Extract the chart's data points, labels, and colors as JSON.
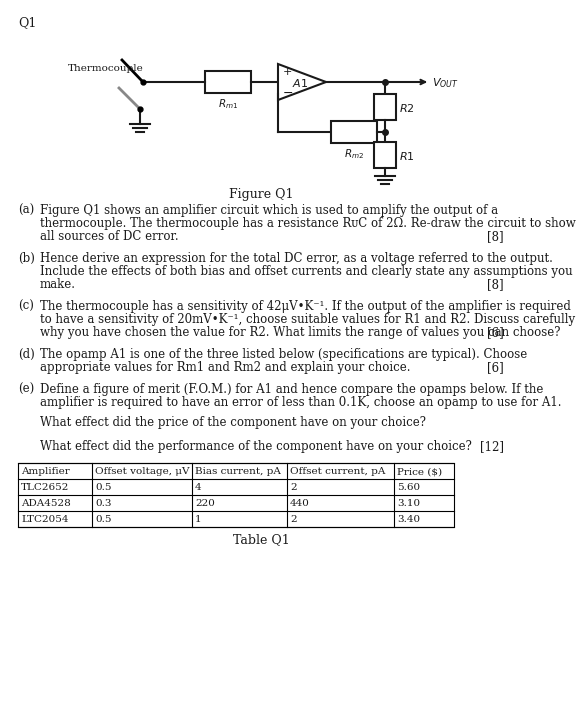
{
  "bg_color": "#ffffff",
  "text_color": "#1a1a1a",
  "line_color": "#1a1a1a",
  "q1_label": "Q1",
  "figure_label": "Figure Q1",
  "table_label": "Table Q1",
  "table_headers": [
    "Amplifier",
    "Offset voltage, μV",
    "Bias current, pA",
    "Offset current, pA",
    "Price ($)"
  ],
  "table_rows": [
    [
      "TLC2652",
      "0.5",
      "4",
      "2",
      "5.60"
    ],
    [
      "ADA4528",
      "0.3",
      "220",
      "440",
      "3.10"
    ],
    [
      "LTC2054",
      "0.5",
      "1",
      "2",
      "3.40"
    ]
  ],
  "qa_label": "(a)",
  "qa_line1": "Figure Q1 shows an amplifier circuit which is used to amplify the output of a",
  "qa_line2": "thermocouple. The thermocouple has a resistance RᴜC of 2Ω. Re-draw the circuit to show",
  "qa_line3": "all sources of DC error.",
  "qa_mark": "[8]",
  "qb_label": "(b)",
  "qb_line1": "Hence derive an expression for the total DC error, as a voltage referred to the output.",
  "qb_line2": "Include the effects of both bias and offset currents and clearly state any assumptions you",
  "qb_line3": "make.",
  "qb_mark": "[8]",
  "qc_label": "(c)",
  "qc_line1": "The thermocouple has a sensitivity of 42μV•K⁻¹. If the output of the amplifier is required",
  "qc_line2": "to have a sensitivity of 20mV•K⁻¹, choose suitable values for R1 and R2. Discuss carefully",
  "qc_line3": "why you have chosen the value for R2. What limits the range of values you can choose?",
  "qc_mark": "[6]",
  "qd_label": "(d)",
  "qd_line1": "The opamp A1 is one of the three listed below (specifications are typical). Choose",
  "qd_line2": "appropriate values for Rm1 and Rm2 and explain your choice.",
  "qd_mark": "[6]",
  "qe_label": "(e)",
  "qe_line1": "Define a figure of merit (F.O.M.) for A1 and hence compare the opamps below. If the",
  "qe_line2": "amplifier is required to have an error of less than 0.1K, choose an opamp to use for A1.",
  "qe_text2": "What effect did the price of the component have on your choice?",
  "qe_text3": "What effect did the performance of the component have on your choice?",
  "qe_mark": "[12]"
}
